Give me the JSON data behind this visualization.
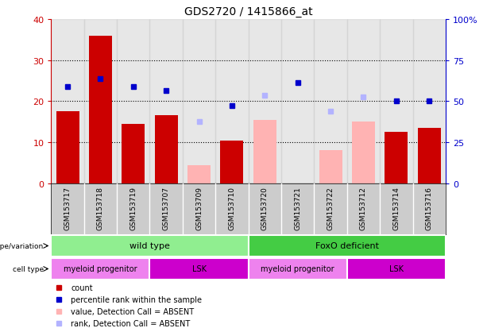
{
  "title": "GDS2720 / 1415866_at",
  "samples": [
    "GSM153717",
    "GSM153718",
    "GSM153719",
    "GSM153707",
    "GSM153709",
    "GSM153710",
    "GSM153720",
    "GSM153721",
    "GSM153722",
    "GSM153712",
    "GSM153714",
    "GSM153716"
  ],
  "count_values": [
    17.5,
    36.0,
    14.5,
    16.5,
    null,
    10.5,
    null,
    null,
    null,
    null,
    12.5,
    13.5
  ],
  "count_absent": [
    null,
    null,
    null,
    null,
    4.5,
    null,
    15.5,
    null,
    8.0,
    15.0,
    null,
    null
  ],
  "rank_values": [
    23.5,
    25.5,
    23.5,
    22.5,
    null,
    19.0,
    null,
    24.5,
    null,
    null,
    20.0,
    20.0
  ],
  "rank_absent": [
    null,
    null,
    null,
    null,
    15.0,
    null,
    21.5,
    null,
    17.5,
    21.0,
    null,
    null
  ],
  "ylim": [
    0,
    40
  ],
  "yticks": [
    0,
    10,
    20,
    30,
    40
  ],
  "ytick_labels_left": [
    "0",
    "10",
    "20",
    "30",
    "40"
  ],
  "ytick_labels_right": [
    "0",
    "25",
    "50",
    "75",
    "100%"
  ],
  "color_count": "#cc0000",
  "color_rank": "#0000cc",
  "color_count_absent": "#ffb3b3",
  "color_rank_absent": "#b3b3ff",
  "color_wt": "#90ee90",
  "color_foxo": "#44cc44",
  "color_myeloid": "#ee82ee",
  "color_lsk": "#cc00cc",
  "genotype_wild": "wild type",
  "genotype_foxo": "FoxO deficient",
  "celltype_myeloid": "myeloid progenitor",
  "celltype_lsk": "LSK",
  "genotype_variation_label": "genotype/variation",
  "cell_type_label": "cell type",
  "legend_items": [
    "count",
    "percentile rank within the sample",
    "value, Detection Call = ABSENT",
    "rank, Detection Call = ABSENT"
  ],
  "col_bg": "#cccccc"
}
